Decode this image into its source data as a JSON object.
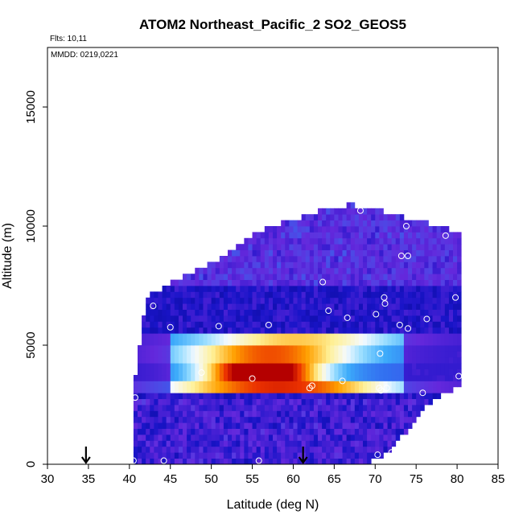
{
  "chart_data": {
    "type": "heatmap",
    "title": "ATOM2 Northeast_Pacific_2 SO2_GEOS5",
    "subtitle": "Flts: 10,11",
    "annotation": "MMDD: 0219,0221",
    "xlabel": "Latitude (deg N)",
    "ylabel": "Altitude (m)",
    "xlim": [
      30,
      85
    ],
    "ylim": [
      0,
      17500
    ],
    "x_ticks": [
      "30",
      "35",
      "40",
      "45",
      "50",
      "55",
      "60",
      "65",
      "70",
      "75",
      "80",
      "85"
    ],
    "y_ticks": [
      "0",
      "5000",
      "10000",
      "15000"
    ],
    "grid": false,
    "colors": {
      "low": "#0a0a96",
      "mid_low": "#6a2fd8",
      "mid": "#3a8ff0",
      "mid_high": "#f0f8ff",
      "high": "#e00000",
      "markers": "#ffffff",
      "arrows": "#000000"
    },
    "curtain": {
      "x_start": 40.5,
      "x_step": 0.5,
      "x_end": 80.5,
      "alt_step": 250,
      "alt_top_profile": [
        [
          40.5,
          3000
        ],
        [
          42,
          6900
        ],
        [
          46,
          7700
        ],
        [
          52,
          8700
        ],
        [
          56,
          9700
        ],
        [
          63,
          10500
        ],
        [
          67,
          10800
        ],
        [
          70,
          10600
        ],
        [
          80.5,
          9600
        ]
      ],
      "alt_bottom_profile": [
        [
          40.5,
          0
        ],
        [
          68,
          0
        ],
        [
          72,
          700
        ],
        [
          76,
          2500
        ],
        [
          80.5,
          3500
        ]
      ],
      "bands": [
        {
          "alt_min": 3000,
          "alt_max": 3400,
          "peak_value": 0.75,
          "lat_peak": 58,
          "lat_width": 16
        },
        {
          "alt_min": 3600,
          "alt_max": 4300,
          "peak_value": 1.0,
          "lat_peak": 56,
          "lat_width": 8
        },
        {
          "alt_min": 4300,
          "alt_max": 4900,
          "peak_value": 0.7,
          "lat_peak": 57,
          "lat_width": 12
        },
        {
          "alt_min": 4900,
          "alt_max": 5400,
          "peak_value": 0.55,
          "lat_peak": 60,
          "lat_width": 14
        }
      ]
    },
    "flight_points": [
      {
        "lat": 40.5,
        "alt": 150
      },
      {
        "lat": 44.2,
        "alt": 150
      },
      {
        "lat": 55.8,
        "alt": 150
      },
      {
        "lat": 70.3,
        "alt": 400
      },
      {
        "lat": 72.0,
        "alt": 500
      },
      {
        "lat": 40.7,
        "alt": 2800
      },
      {
        "lat": 48.8,
        "alt": 3850
      },
      {
        "lat": 55.0,
        "alt": 3600
      },
      {
        "lat": 62.0,
        "alt": 3200
      },
      {
        "lat": 62.3,
        "alt": 3300
      },
      {
        "lat": 66.0,
        "alt": 3500
      },
      {
        "lat": 70.5,
        "alt": 3200
      },
      {
        "lat": 70.7,
        "alt": 3100
      },
      {
        "lat": 71.4,
        "alt": 3200
      },
      {
        "lat": 75.8,
        "alt": 3000
      },
      {
        "lat": 80.2,
        "alt": 3700
      },
      {
        "lat": 70.6,
        "alt": 4650
      },
      {
        "lat": 42.9,
        "alt": 6650
      },
      {
        "lat": 45.0,
        "alt": 5750
      },
      {
        "lat": 50.9,
        "alt": 5800
      },
      {
        "lat": 57.0,
        "alt": 5850
      },
      {
        "lat": 63.6,
        "alt": 7650
      },
      {
        "lat": 64.3,
        "alt": 6450
      },
      {
        "lat": 66.6,
        "alt": 6150
      },
      {
        "lat": 70.1,
        "alt": 6300
      },
      {
        "lat": 71.2,
        "alt": 6750
      },
      {
        "lat": 71.1,
        "alt": 7000
      },
      {
        "lat": 73.0,
        "alt": 5850
      },
      {
        "lat": 74.0,
        "alt": 5700
      },
      {
        "lat": 76.3,
        "alt": 6100
      },
      {
        "lat": 79.8,
        "alt": 7000
      },
      {
        "lat": 73.2,
        "alt": 8750
      },
      {
        "lat": 74.0,
        "alt": 8750
      },
      {
        "lat": 73.8,
        "alt": 10000
      },
      {
        "lat": 78.6,
        "alt": 9600
      },
      {
        "lat": 68.2,
        "alt": 10650
      }
    ],
    "arrow_markers": [
      {
        "lat": 34.7,
        "label": ""
      },
      {
        "lat": 61.2,
        "label": ""
      }
    ]
  }
}
